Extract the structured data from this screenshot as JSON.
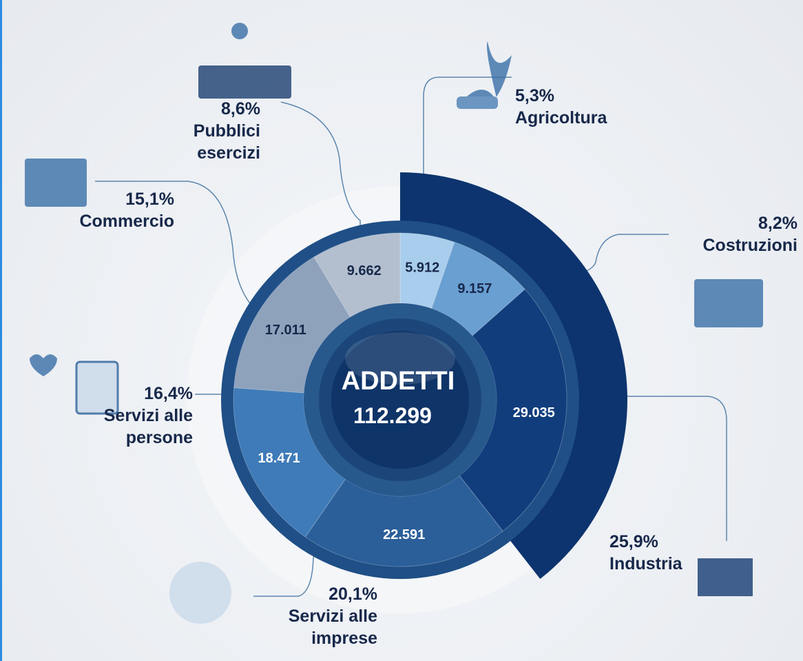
{
  "chart_data": {
    "type": "pie",
    "center_title": "ADDETTI",
    "total": 112299,
    "total_label": "112.299",
    "categories": [
      "Agricoltura",
      "Costruzioni",
      "Industria",
      "Servizi alle imprese",
      "Servizi alle persone",
      "Commercio",
      "Pubblici esercizi"
    ],
    "values": [
      5912,
      9157,
      29035,
      22591,
      18471,
      17011,
      9662
    ],
    "value_labels": [
      "5.912",
      "9.157",
      "29.035",
      "22.591",
      "18.471",
      "17.011",
      "9.662"
    ],
    "shares": [
      5.3,
      8.2,
      25.9,
      20.1,
      16.4,
      15.1,
      8.6
    ],
    "share_labels": [
      "5,3%",
      "8,2%",
      "25,9%",
      "20,1%",
      "16,4%",
      "15,1%",
      "8,6%"
    ],
    "colors": [
      "#a9cdec",
      "#6a9fd2",
      "#113d7c",
      "#2b5f99",
      "#3f7bb8",
      "#8ea2bc",
      "#b3bfcf"
    ]
  }
}
